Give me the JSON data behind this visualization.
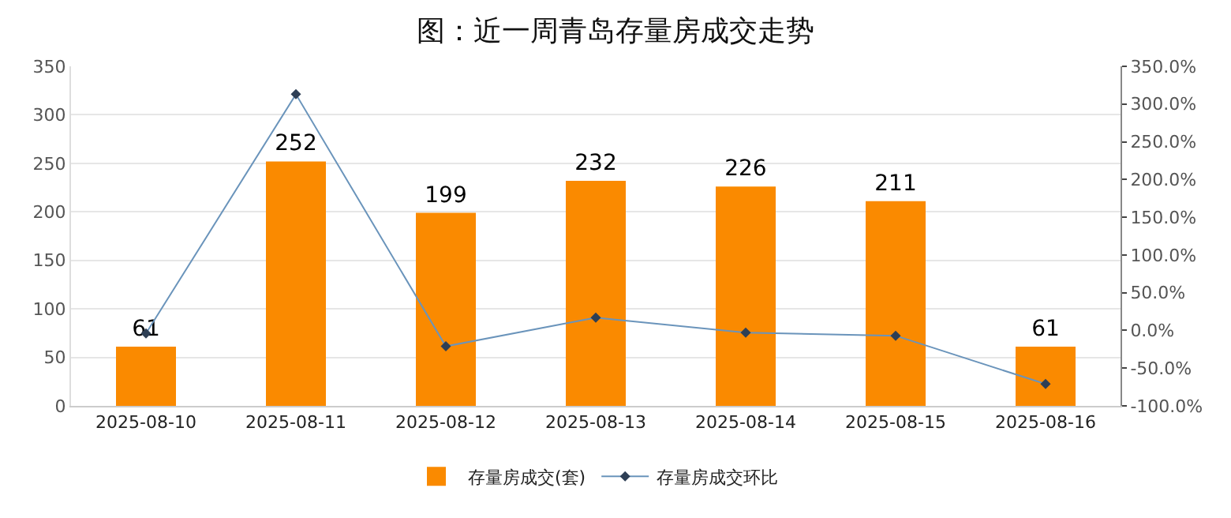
{
  "chart_data": {
    "type": "bar",
    "title": "图：近一周青岛存量房成交走势",
    "categories": [
      "2025-08-10",
      "2025-08-11",
      "2025-08-12",
      "2025-08-13",
      "2025-08-14",
      "2025-08-15",
      "2025-08-16"
    ],
    "series": [
      {
        "name": "存量房成交(套)",
        "color": "#fa8a00",
        "values": [
          61,
          252,
          199,
          232,
          226,
          211,
          61
        ],
        "data_labels": true
      },
      {
        "name": "存量房成交环比",
        "type": "line",
        "axis": "y2",
        "color": "#6a94bb",
        "marker": "diamond",
        "values": [
          -4,
          313,
          -21,
          17,
          -3,
          -7,
          -71
        ]
      }
    ],
    "ylim": [
      0,
      350
    ],
    "yticks": [
      0,
      50,
      100,
      150,
      200,
      250,
      300,
      350
    ],
    "y2lim": [
      -100,
      350
    ],
    "y2ticks": [
      {
        "value": -100,
        "label": "-100.0%"
      },
      {
        "value": -50,
        "label": "-50.0%"
      },
      {
        "value": 0,
        "label": "0.0%"
      },
      {
        "value": 50,
        "label": "50.0%"
      },
      {
        "value": 100,
        "label": "100.0%"
      },
      {
        "value": 150,
        "label": "150.0%"
      },
      {
        "value": 200,
        "label": "200.0%"
      },
      {
        "value": 250,
        "label": "250.0%"
      },
      {
        "value": 300,
        "label": "300.0%"
      },
      {
        "value": 350,
        "label": "350.0%"
      }
    ],
    "grid": "y",
    "legend": "bottom"
  }
}
